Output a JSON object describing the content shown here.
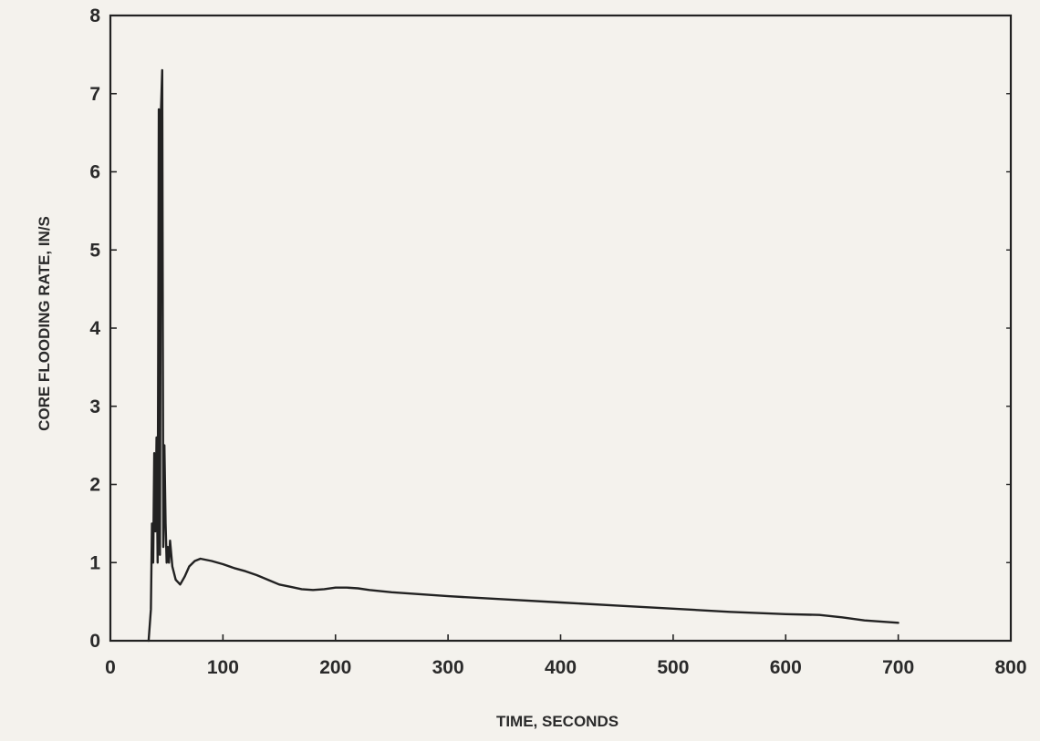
{
  "chart_data": {
    "type": "line",
    "title": "",
    "xlabel": "TIME, SECONDS",
    "ylabel": "CORE FLOODING RATE, IN/S",
    "xlim": [
      0,
      800
    ],
    "ylim": [
      0,
      8
    ],
    "xticks": [
      0,
      100,
      200,
      300,
      400,
      500,
      600,
      700,
      800
    ],
    "yticks": [
      0,
      1,
      2,
      3,
      4,
      5,
      6,
      7,
      8
    ],
    "grid": false,
    "legend": "none",
    "colors": {
      "line": "#222222",
      "axis": "#222222",
      "background": "#f4f2ed"
    },
    "series": [
      {
        "x": [
          34,
          36,
          37,
          38,
          39,
          40,
          41,
          42,
          43,
          44,
          45,
          46,
          47,
          48,
          49,
          50,
          51,
          52,
          53,
          55,
          58,
          62,
          66,
          70,
          75,
          80,
          90,
          100,
          110,
          120,
          130,
          140,
          150,
          160,
          170,
          180,
          190,
          200,
          210,
          220,
          230,
          250,
          300,
          350,
          400,
          450,
          500,
          550,
          600,
          630,
          650,
          670,
          700
        ],
        "y": [
          0.0,
          0.4,
          1.5,
          1.0,
          2.4,
          1.4,
          2.6,
          1.0,
          6.8,
          1.1,
          6.8,
          7.3,
          1.2,
          2.5,
          1.5,
          1.0,
          1.2,
          1.0,
          1.28,
          0.95,
          0.78,
          0.72,
          0.82,
          0.95,
          1.02,
          1.05,
          1.02,
          0.98,
          0.93,
          0.89,
          0.84,
          0.78,
          0.72,
          0.69,
          0.66,
          0.65,
          0.66,
          0.68,
          0.68,
          0.67,
          0.65,
          0.62,
          0.57,
          0.53,
          0.49,
          0.45,
          0.41,
          0.37,
          0.34,
          0.33,
          0.3,
          0.26,
          0.23
        ]
      }
    ]
  }
}
